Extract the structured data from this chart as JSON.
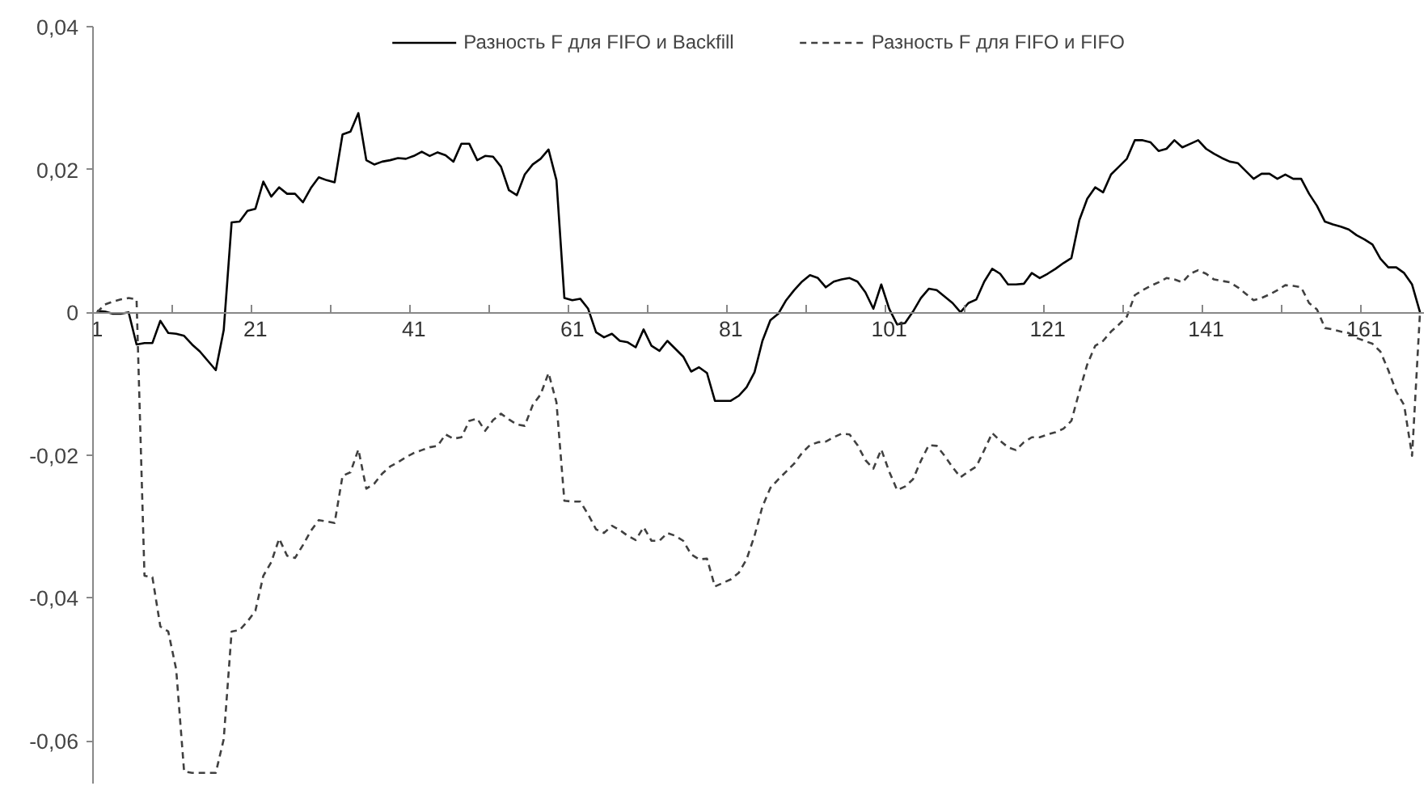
{
  "chart_data": {
    "type": "line",
    "x": [
      1,
      2,
      3,
      4,
      5,
      6,
      7,
      8,
      9,
      10,
      11,
      12,
      13,
      14,
      15,
      16,
      17,
      18,
      19,
      20,
      21,
      22,
      23,
      24,
      25,
      26,
      27,
      28,
      29,
      30,
      31,
      32,
      33,
      34,
      35,
      36,
      37,
      38,
      39,
      40,
      41,
      42,
      43,
      44,
      45,
      46,
      47,
      48,
      49,
      50,
      51,
      52,
      53,
      54,
      55,
      56,
      57,
      58,
      59,
      60,
      61,
      62,
      63,
      64,
      65,
      66,
      67,
      68,
      69,
      70,
      71,
      72,
      73,
      74,
      75,
      76,
      77,
      78,
      79,
      80,
      81,
      82,
      83,
      84,
      85,
      86,
      87,
      88,
      89,
      90,
      91,
      92,
      93,
      94,
      95,
      96,
      97,
      98,
      99,
      100,
      101,
      102,
      103,
      104,
      105,
      106,
      107,
      108,
      109,
      110,
      111,
      112,
      113,
      114,
      115,
      116,
      117,
      118,
      119,
      120,
      121,
      122,
      123,
      124,
      125,
      126,
      127,
      128,
      129,
      130,
      131,
      132,
      133,
      134,
      135,
      136,
      137,
      138,
      139,
      140,
      141,
      142,
      143,
      144,
      145,
      146,
      147,
      148,
      149,
      150,
      151,
      152,
      153,
      154,
      155,
      156,
      157,
      158,
      159,
      160,
      161,
      162,
      163,
      164,
      165,
      166,
      167,
      168
    ],
    "series": [
      {
        "name": "Разность F для FIFO и Backfill",
        "color": "#000000",
        "line_style": "solid",
        "values": [
          0.0002,
          0.0001,
          -0.0002,
          -0.0002,
          0,
          -0.0045,
          -0.0043,
          -0.0043,
          -0.0012,
          -0.0029,
          -0.003,
          -0.0033,
          -0.0045,
          -0.0055,
          -0.0068,
          -0.0081,
          -0.0025,
          0.0126,
          0.0127,
          0.0142,
          0.0145,
          0.0183,
          0.0162,
          0.0175,
          0.0166,
          0.0166,
          0.0154,
          0.0174,
          0.0189,
          0.0185,
          0.0182,
          0.0249,
          0.0253,
          0.0279,
          0.0213,
          0.0207,
          0.0211,
          0.0213,
          0.0216,
          0.0215,
          0.0219,
          0.0225,
          0.0219,
          0.0224,
          0.022,
          0.0211,
          0.0236,
          0.0236,
          0.0213,
          0.0219,
          0.0218,
          0.0204,
          0.0171,
          0.0164,
          0.0193,
          0.0207,
          0.0215,
          0.0228,
          0.0185,
          0.002,
          0.0017,
          0.0019,
          0.0005,
          -0.0028,
          -0.0035,
          -0.003,
          -0.004,
          -0.0042,
          -0.0049,
          -0.0024,
          -0.0047,
          -0.0054,
          -0.004,
          -0.0051,
          -0.0062,
          -0.0083,
          -0.0077,
          -0.0085,
          -0.0124,
          -0.0124,
          -0.0124,
          -0.0117,
          -0.0105,
          -0.0084,
          -0.004,
          -0.0011,
          -0.0002,
          0.0017,
          0.0031,
          0.0043,
          0.0052,
          0.0048,
          0.0035,
          0.0043,
          0.0046,
          0.0048,
          0.0043,
          0.0028,
          0.0005,
          0.0039,
          0.0005,
          -0.0017,
          -0.0015,
          0.0001,
          0.002,
          0.0033,
          0.0031,
          0.0022,
          0.0013,
          0,
          0.0013,
          0.0018,
          0.0043,
          0.0061,
          0.0054,
          0.0039,
          0.0039,
          0.004,
          0.0055,
          0.0048,
          0.0054,
          0.0061,
          0.0069,
          0.0076,
          0.0129,
          0.0159,
          0.0175,
          0.0168,
          0.0193,
          0.0204,
          0.0215,
          0.0241,
          0.0241,
          0.0238,
          0.0226,
          0.0229,
          0.0241,
          0.0231,
          0.0236,
          0.0241,
          0.0229,
          0.0222,
          0.0216,
          0.0211,
          0.0209,
          0.0198,
          0.0187,
          0.0194,
          0.0194,
          0.0187,
          0.0193,
          0.0187,
          0.0187,
          0.0166,
          0.0149,
          0.0127,
          0.0123,
          0.012,
          0.0116,
          0.0108,
          0.0102,
          0.0095,
          0.0075,
          0.0063,
          0.0063,
          0.0055,
          0.0039,
          0
        ]
      },
      {
        "name": "Разность F для FIFO и FIFO",
        "color": "#404040",
        "line_style": "dashed",
        "values": [
          0,
          0.0011,
          0.0015,
          0.0018,
          0.002,
          0.0018,
          -0.0369,
          -0.0371,
          -0.044,
          -0.0447,
          -0.05,
          -0.0643,
          -0.0645,
          -0.0645,
          -0.0645,
          -0.0645,
          -0.0598,
          -0.0447,
          -0.0445,
          -0.0433,
          -0.0418,
          -0.0369,
          -0.035,
          -0.0317,
          -0.0341,
          -0.0344,
          -0.0326,
          -0.0306,
          -0.0291,
          -0.0293,
          -0.0295,
          -0.0229,
          -0.0224,
          -0.0192,
          -0.0247,
          -0.024,
          -0.0226,
          -0.0216,
          -0.021,
          -0.0203,
          -0.0197,
          -0.0193,
          -0.0189,
          -0.0187,
          -0.0171,
          -0.0177,
          -0.0175,
          -0.0152,
          -0.0149,
          -0.0166,
          -0.0151,
          -0.0142,
          -0.015,
          -0.0157,
          -0.0159,
          -0.013,
          -0.0115,
          -0.0085,
          -0.0126,
          -0.0264,
          -0.0265,
          -0.0265,
          -0.0283,
          -0.0304,
          -0.0309,
          -0.0299,
          -0.0305,
          -0.0313,
          -0.0319,
          -0.0301,
          -0.032,
          -0.032,
          -0.0309,
          -0.0313,
          -0.032,
          -0.0339,
          -0.0346,
          -0.0345,
          -0.0384,
          -0.0379,
          -0.0374,
          -0.0365,
          -0.0346,
          -0.0313,
          -0.0272,
          -0.0246,
          -0.0234,
          -0.0223,
          -0.0212,
          -0.0197,
          -0.0186,
          -0.0182,
          -0.0181,
          -0.0175,
          -0.017,
          -0.0171,
          -0.0186,
          -0.0207,
          -0.0219,
          -0.0192,
          -0.0223,
          -0.0249,
          -0.0244,
          -0.0234,
          -0.0208,
          -0.0186,
          -0.0187,
          -0.0201,
          -0.0217,
          -0.0231,
          -0.0223,
          -0.0216,
          -0.0193,
          -0.0169,
          -0.018,
          -0.0189,
          -0.0193,
          -0.0182,
          -0.0175,
          -0.0175,
          -0.0171,
          -0.0168,
          -0.0163,
          -0.0152,
          -0.0111,
          -0.0073,
          -0.0047,
          -0.004,
          -0.0027,
          -0.0017,
          -0.0006,
          0.0024,
          0.0031,
          0.0037,
          0.0042,
          0.0048,
          0.0046,
          0.0042,
          0.0054,
          0.0059,
          0.0054,
          0.0046,
          0.0044,
          0.0042,
          0.0035,
          0.0026,
          0.0017,
          0.002,
          0.0025,
          0.0031,
          0.0038,
          0.0037,
          0.0035,
          0.0013,
          0.0004,
          -0.0022,
          -0.0024,
          -0.0027,
          -0.0029,
          -0.0036,
          -0.004,
          -0.0044,
          -0.0055,
          -0.0081,
          -0.0111,
          -0.013,
          -0.0201,
          0
        ]
      }
    ],
    "xlim": [
      0.5,
      168.5
    ],
    "xticks": [
      {
        "value": 1,
        "label": "1"
      },
      {
        "value": 21,
        "label": "21"
      },
      {
        "value": 41,
        "label": "41"
      },
      {
        "value": 61,
        "label": "61"
      },
      {
        "value": 81,
        "label": "81"
      },
      {
        "value": 101,
        "label": "101"
      },
      {
        "value": 121,
        "label": "121"
      },
      {
        "value": 141,
        "label": "141"
      },
      {
        "value": 161,
        "label": "161"
      },
      {
        "value": 10.5,
        "label": null
      },
      {
        "value": 20.5,
        "label": null
      },
      {
        "value": 30.5,
        "label": null
      },
      {
        "value": 40.5,
        "label": null
      },
      {
        "value": 50.5,
        "label": null
      },
      {
        "value": 60.5,
        "label": null
      },
      {
        "value": 70.5,
        "label": null
      },
      {
        "value": 80.5,
        "label": null
      },
      {
        "value": 90.5,
        "label": null
      },
      {
        "value": 100.5,
        "label": null
      },
      {
        "value": 110.5,
        "label": null
      },
      {
        "value": 120.5,
        "label": null
      },
      {
        "value": 130.5,
        "label": null
      },
      {
        "value": 140.5,
        "label": null
      },
      {
        "value": 150.5,
        "label": null
      },
      {
        "value": 160.5,
        "label": null
      }
    ],
    "ylim": [
      -0.066,
      0.04
    ],
    "yticks": [
      {
        "value": 0.04,
        "label": "0,04"
      },
      {
        "value": 0.02,
        "label": "0,02"
      },
      {
        "value": 0,
        "label": "0"
      },
      {
        "value": -0.02,
        "label": "-0,02"
      },
      {
        "value": -0.04,
        "label": "-0,04"
      },
      {
        "value": -0.06,
        "label": "-0,06"
      }
    ],
    "grid": false,
    "legend": "top",
    "marker": "none"
  }
}
